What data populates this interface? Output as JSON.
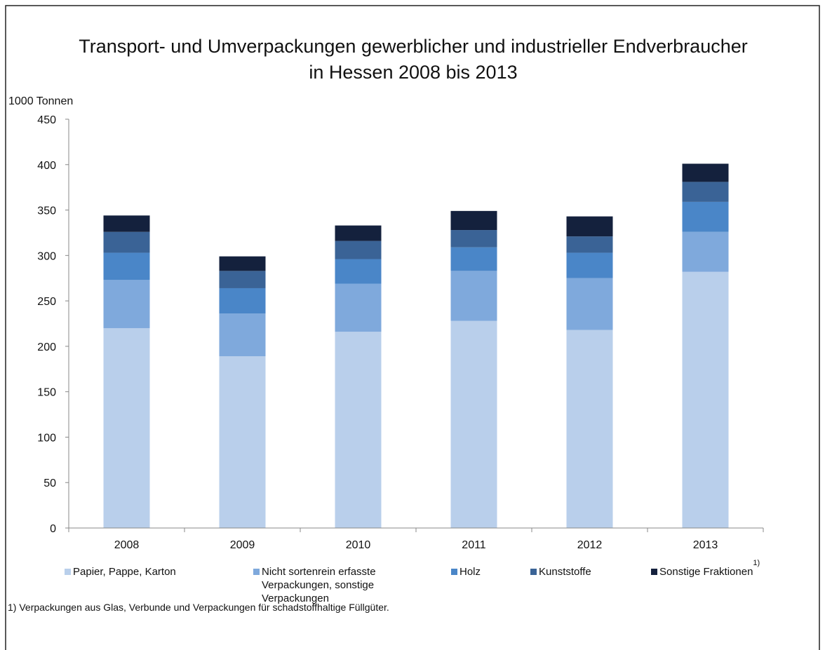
{
  "chart_data": {
    "type": "stacked_bar",
    "title": [
      "Transport- und Umverpackungen gewerblicher und industrieller Endverbraucher",
      "in Hessen 2008 bis 2013"
    ],
    "y_label": "1000 Tonnen",
    "categories": [
      "2008",
      "2009",
      "2010",
      "2011",
      "2012",
      "2013"
    ],
    "series": [
      {
        "name": "Papier, Pappe, Karton",
        "color": "#b9cfeb",
        "values": [
          220,
          189,
          216,
          228,
          218,
          282
        ]
      },
      {
        "name": "Nicht sortenrein erfasste Verpackungen, sonstige Verpackungen",
        "color": "#7fa9dc",
        "values": [
          53,
          47,
          53,
          55,
          57,
          44
        ]
      },
      {
        "name": "Holz",
        "color": "#4a86c8",
        "values": [
          30,
          28,
          27,
          26,
          28,
          33
        ]
      },
      {
        "name": "Kunststoffe",
        "color": "#3a6396",
        "values": [
          23,
          19,
          20,
          19,
          18,
          22
        ]
      },
      {
        "name": "Sonstige Fraktionen",
        "color": "#14213d",
        "values": [
          18,
          16,
          17,
          21,
          22,
          20
        ],
        "footnote_mark": "1)"
      }
    ],
    "ylim": [
      0,
      450
    ],
    "yticks": [
      0,
      50,
      100,
      150,
      200,
      250,
      300,
      350,
      400,
      450
    ],
    "footnote": "1) Verpackungen aus Glas, Verbunde und Verpackungen für schadstoffhaltige Füllgüter."
  }
}
